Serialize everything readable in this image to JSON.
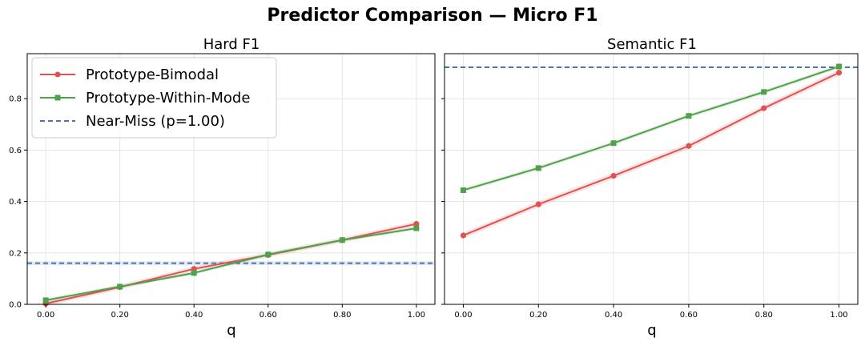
{
  "figure": {
    "title": "Predictor Comparison — Micro F1"
  },
  "colors": {
    "bimodal": "#e05252",
    "within_mode": "#4ea24a",
    "near_miss": "#4c72b0"
  },
  "chart_data": [
    {
      "type": "line",
      "title": "Hard F1",
      "xlabel": "q",
      "ylabel": "",
      "x": [
        0.0,
        0.2,
        0.4,
        0.6,
        0.8,
        1.0
      ],
      "x_tick_labels": [
        "0.00",
        "0.20",
        "0.40",
        "0.60",
        "0.80",
        "1.00"
      ],
      "xlim": [
        -0.05,
        1.05
      ],
      "y_ticks": [
        0.0,
        0.2,
        0.4,
        0.6,
        0.8
      ],
      "y_tick_labels": [
        "0.0",
        "0.2",
        "0.4",
        "0.6",
        "0.8"
      ],
      "ylim": [
        0.0,
        0.975
      ],
      "grid": true,
      "legend": {
        "placement": "top-left",
        "entries": [
          "Prototype-Bimodal",
          "Prototype-Within-Mode",
          "Near-Miss (p=1.00)"
        ]
      },
      "series": [
        {
          "name": "Prototype-Bimodal",
          "marker": "circle",
          "values": [
            0.003,
            0.067,
            0.138,
            0.192,
            0.25,
            0.313
          ],
          "band": 0.01
        },
        {
          "name": "Prototype-Within-Mode",
          "marker": "square",
          "values": [
            0.016,
            0.069,
            0.122,
            0.194,
            0.25,
            0.296
          ],
          "band": 0.006
        }
      ],
      "hline": {
        "name": "Near-Miss (p=1.00)",
        "value": 0.16,
        "band": 0.008
      }
    },
    {
      "type": "line",
      "title": "Semantic F1",
      "xlabel": "q",
      "ylabel": "",
      "x": [
        0.0,
        0.2,
        0.4,
        0.6,
        0.8,
        1.0
      ],
      "x_tick_labels": [
        "0.00",
        "0.20",
        "0.40",
        "0.60",
        "0.80",
        "1.00"
      ],
      "xlim": [
        -0.05,
        1.05
      ],
      "y_ticks": [
        0.0,
        0.2,
        0.4,
        0.6,
        0.8
      ],
      "y_tick_labels": [],
      "ylim": [
        0.0,
        0.975
      ],
      "grid": true,
      "legend": null,
      "series": [
        {
          "name": "Prototype-Bimodal",
          "marker": "circle",
          "values": [
            0.268,
            0.389,
            0.5,
            0.616,
            0.763,
            0.901
          ],
          "band": 0.012
        },
        {
          "name": "Prototype-Within-Mode",
          "marker": "square",
          "values": [
            0.444,
            0.53,
            0.627,
            0.733,
            0.826,
            0.925
          ],
          "band": 0.008
        }
      ],
      "hline": {
        "name": "Near-Miss (p=1.00)",
        "value": 0.922,
        "band": 0.002
      }
    }
  ]
}
